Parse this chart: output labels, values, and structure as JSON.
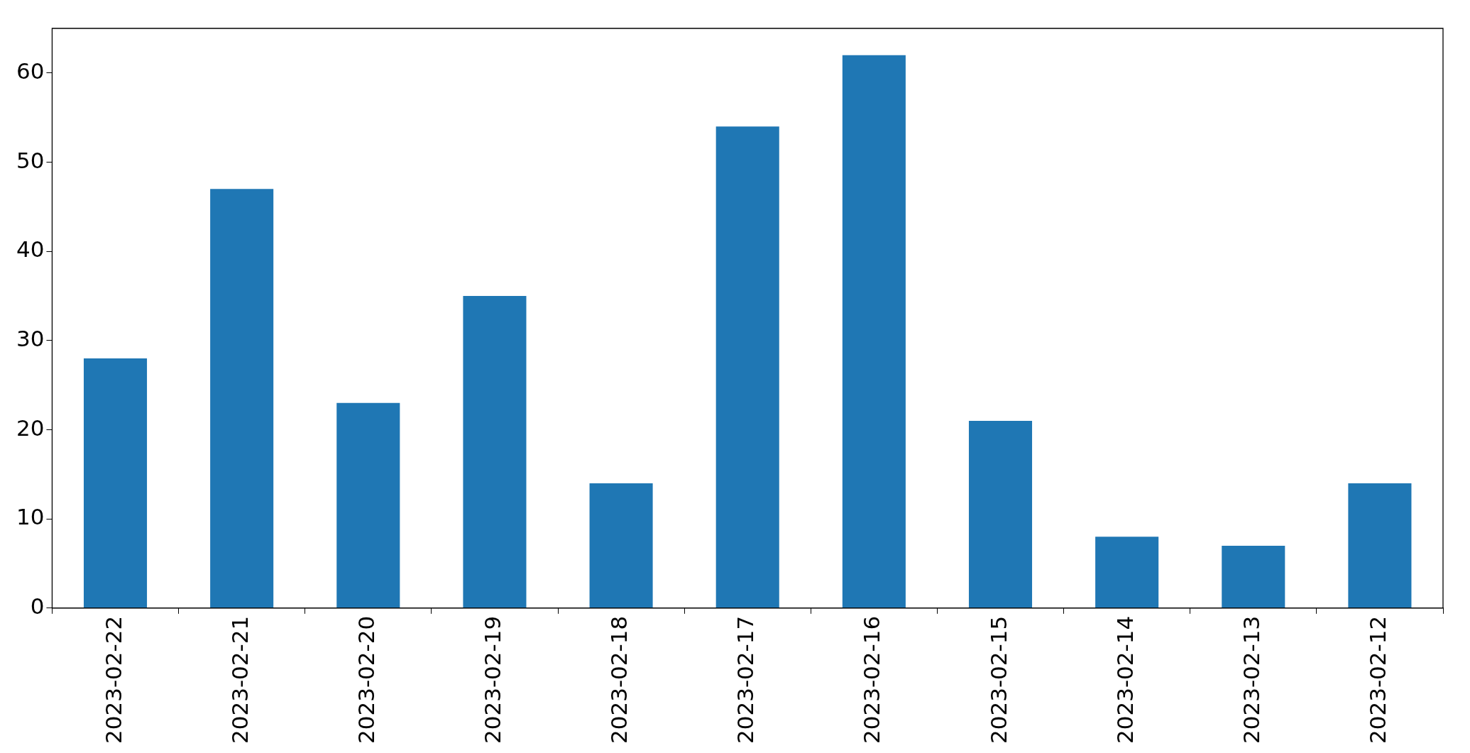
{
  "chart_data": {
    "type": "bar",
    "categories": [
      "2023-02-22",
      "2023-02-21",
      "2023-02-20",
      "2023-02-19",
      "2023-02-18",
      "2023-02-17",
      "2023-02-16",
      "2023-02-15",
      "2023-02-14",
      "2023-02-13",
      "2023-02-12"
    ],
    "values": [
      28,
      47,
      23,
      35,
      14,
      54,
      62,
      21,
      8,
      7,
      14
    ],
    "color": "#1f77b4",
    "ylim": [
      0,
      65
    ],
    "yticks": [
      0,
      10,
      20,
      30,
      40,
      50,
      60
    ],
    "grid": false,
    "legend": false
  }
}
